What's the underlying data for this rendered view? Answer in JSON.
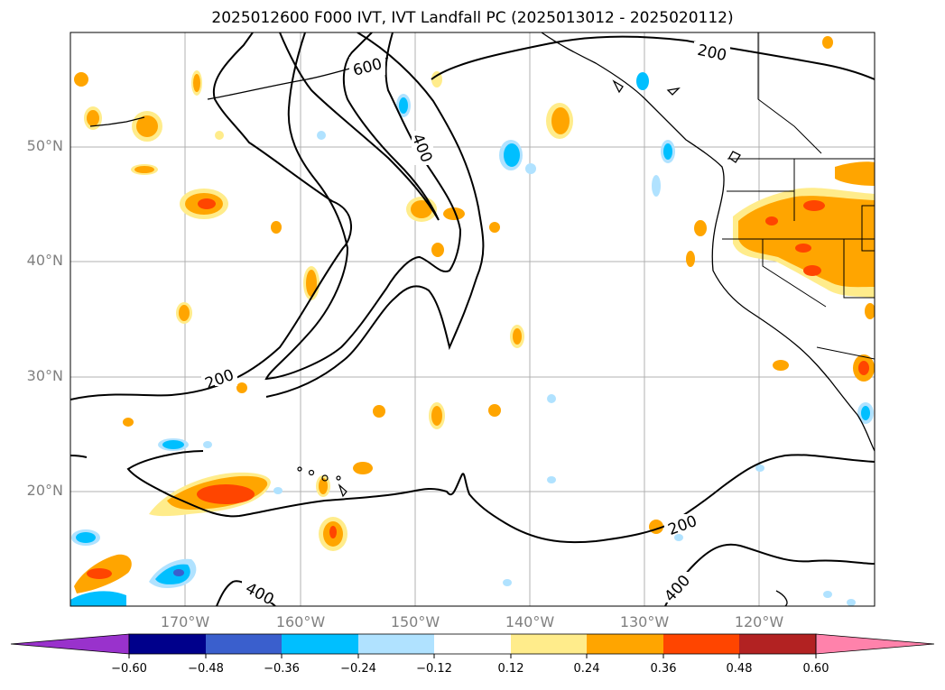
{
  "title": "2025012600 F000 IVT, IVT Landfall PC (2025013012 - 2025020112)",
  "map": {
    "lat_labels": [
      "50°N",
      "40°N",
      "30°N",
      "20°N"
    ],
    "lon_labels": [
      "170°W",
      "160°W",
      "150°W",
      "140°W",
      "130°W",
      "120°W"
    ],
    "contour_labels": [
      "200",
      "600",
      "400",
      "200",
      "200",
      "400",
      "400"
    ]
  },
  "colorbar": {
    "tick_labels": [
      "−0.60",
      "−0.48",
      "−0.36",
      "−0.24",
      "−0.12",
      "0.12",
      "0.24",
      "0.36",
      "0.48",
      "0.60"
    ],
    "colors": [
      "#9932cc",
      "#00008b",
      "#3a5fcd",
      "#00bfff",
      "#b0e2ff",
      "#ffffff",
      "#ffec8b",
      "#ffa500",
      "#ff4500",
      "#b22222",
      "#ff82ab"
    ]
  }
}
